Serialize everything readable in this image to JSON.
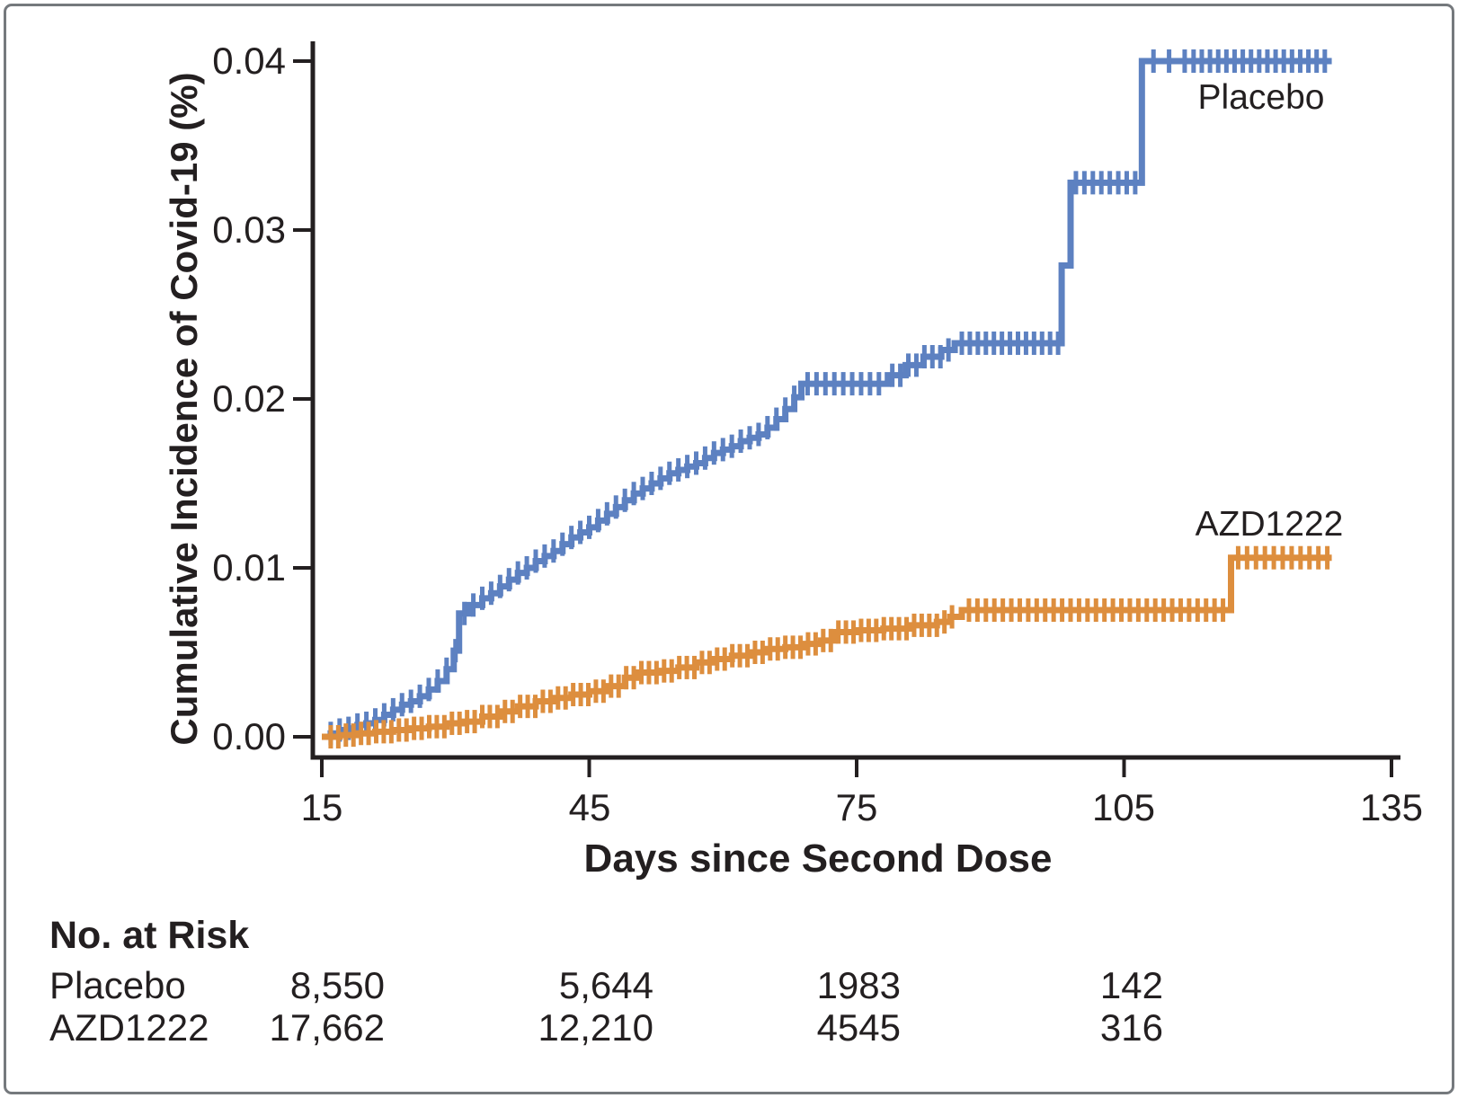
{
  "figure": {
    "axes": {
      "y_title": "Cumulative Incidence of Covid-19 (%)",
      "x_title": "Days since Second Dose",
      "y_tick_labels": [
        "0.04",
        "0.03",
        "0.02",
        "0.01",
        "0.00"
      ],
      "x_tick_labels": [
        "15",
        "45",
        "75",
        "105",
        "135"
      ]
    },
    "curve_labels": {
      "placebo": "Placebo",
      "azd1222": "AZD1222"
    },
    "risk_table": {
      "heading": "No. at Risk",
      "rows": [
        {
          "label": "Placebo",
          "values": [
            "8,550",
            "5,644",
            "1983",
            "142"
          ]
        },
        {
          "label": "AZD1222",
          "values": [
            "17,662",
            "12,210",
            "4545",
            "316"
          ]
        }
      ]
    }
  },
  "chart_data": {
    "type": "line",
    "subtype": "kaplan-meier-cumulative-incidence-step",
    "title": "",
    "xlabel": "Days since Second Dose",
    "ylabel": "Cumulative Incidence of Covid-19 (%)",
    "xlim": [
      15,
      135
    ],
    "ylim": [
      0,
      0.04
    ],
    "x_ticks": [
      15,
      45,
      75,
      105,
      135
    ],
    "y_ticks": [
      0,
      0.01,
      0.02,
      0.03,
      0.04
    ],
    "grid": false,
    "legend_position": "inline-labels",
    "axis_color": "#231f20",
    "series": [
      {
        "name": "Placebo",
        "color": "#5d81c1",
        "end_day": 128.3,
        "steps": [
          [
            15,
            0.0
          ],
          [
            16,
            0.0002
          ],
          [
            17,
            0.0004
          ],
          [
            18,
            0.0005
          ],
          [
            19,
            0.0007
          ],
          [
            20,
            0.0008
          ],
          [
            21,
            0.001
          ],
          [
            22,
            0.0013
          ],
          [
            23,
            0.0016
          ],
          [
            24,
            0.0019
          ],
          [
            25,
            0.0021
          ],
          [
            26,
            0.0024
          ],
          [
            27,
            0.0028
          ],
          [
            28,
            0.0033
          ],
          [
            29,
            0.004
          ],
          [
            29.8,
            0.0051
          ],
          [
            30.4,
            0.0073
          ],
          [
            31.5,
            0.0078
          ],
          [
            33,
            0.0082
          ],
          [
            34,
            0.0085
          ],
          [
            35,
            0.0089
          ],
          [
            36,
            0.0093
          ],
          [
            37,
            0.0097
          ],
          [
            38,
            0.01
          ],
          [
            39,
            0.0104
          ],
          [
            40,
            0.0107
          ],
          [
            41,
            0.011
          ],
          [
            42,
            0.0114
          ],
          [
            43,
            0.0118
          ],
          [
            44,
            0.0121
          ],
          [
            45,
            0.0124
          ],
          [
            46,
            0.0128
          ],
          [
            47,
            0.0132
          ],
          [
            48,
            0.0136
          ],
          [
            49,
            0.014
          ],
          [
            50,
            0.0144
          ],
          [
            51,
            0.0147
          ],
          [
            52,
            0.015
          ],
          [
            53,
            0.0153
          ],
          [
            54,
            0.0156
          ],
          [
            55,
            0.0158
          ],
          [
            56,
            0.016
          ],
          [
            57,
            0.0162
          ],
          [
            58,
            0.0165
          ],
          [
            59,
            0.0168
          ],
          [
            60,
            0.017
          ],
          [
            61,
            0.0172
          ],
          [
            62,
            0.0175
          ],
          [
            63,
            0.0177
          ],
          [
            64,
            0.0179
          ],
          [
            65,
            0.0183
          ],
          [
            66,
            0.0188
          ],
          [
            67,
            0.0194
          ],
          [
            68,
            0.0201
          ],
          [
            68.8,
            0.0209
          ],
          [
            78.5,
            0.0214
          ],
          [
            80.5,
            0.022
          ],
          [
            82.5,
            0.0225
          ],
          [
            84.5,
            0.0229
          ],
          [
            86,
            0.0233
          ],
          [
            98,
            0.0279
          ],
          [
            99,
            0.0328
          ],
          [
            107,
            0.04
          ]
        ],
        "censor_tick_segments": [
          [
            16,
            68,
            1.0
          ],
          [
            69.5,
            78,
            1.0
          ],
          [
            79,
            85.5,
            0.9
          ],
          [
            86.8,
            97.6,
            0.9
          ],
          [
            99.6,
            106.5,
            0.95
          ],
          [
            108.3,
            111.8,
            1.75
          ],
          [
            112.8,
            128.2,
            0.92
          ]
        ]
      },
      {
        "name": "AZD1222",
        "color": "#dd8e3e",
        "end_day": 128.3,
        "steps": [
          [
            15,
            0.0
          ],
          [
            17,
            0.0001
          ],
          [
            19,
            0.0002
          ],
          [
            21,
            0.0003
          ],
          [
            23,
            0.0004
          ],
          [
            25,
            0.0005
          ],
          [
            27,
            0.0006
          ],
          [
            29,
            0.0008
          ],
          [
            31,
            0.0009
          ],
          [
            33,
            0.0012
          ],
          [
            35,
            0.0015
          ],
          [
            37,
            0.0018
          ],
          [
            39,
            0.0021
          ],
          [
            41,
            0.0023
          ],
          [
            43,
            0.0025
          ],
          [
            45,
            0.0027
          ],
          [
            47,
            0.003
          ],
          [
            49,
            0.0035
          ],
          [
            50.5,
            0.0038
          ],
          [
            53,
            0.0039
          ],
          [
            55,
            0.0041
          ],
          [
            57,
            0.0044
          ],
          [
            59,
            0.0046
          ],
          [
            61,
            0.0048
          ],
          [
            63,
            0.005
          ],
          [
            65,
            0.0052
          ],
          [
            67,
            0.0053
          ],
          [
            69,
            0.0055
          ],
          [
            71,
            0.0057
          ],
          [
            72.5,
            0.0062
          ],
          [
            75,
            0.0063
          ],
          [
            78,
            0.0064
          ],
          [
            81,
            0.0066
          ],
          [
            84,
            0.0068
          ],
          [
            85.5,
            0.0071
          ],
          [
            86.8,
            0.0075
          ],
          [
            117,
            0.0106
          ]
        ],
        "censor_tick_segments": [
          [
            16,
            86,
            0.85
          ],
          [
            87.6,
            116.2,
            0.95
          ],
          [
            117.8,
            128.2,
            1.0
          ]
        ]
      }
    ],
    "no_at_risk": {
      "days": [
        15,
        45,
        75,
        105
      ],
      "Placebo": [
        8550,
        5644,
        1983,
        142
      ],
      "AZD1222": [
        17662,
        12210,
        4545,
        316
      ]
    }
  }
}
